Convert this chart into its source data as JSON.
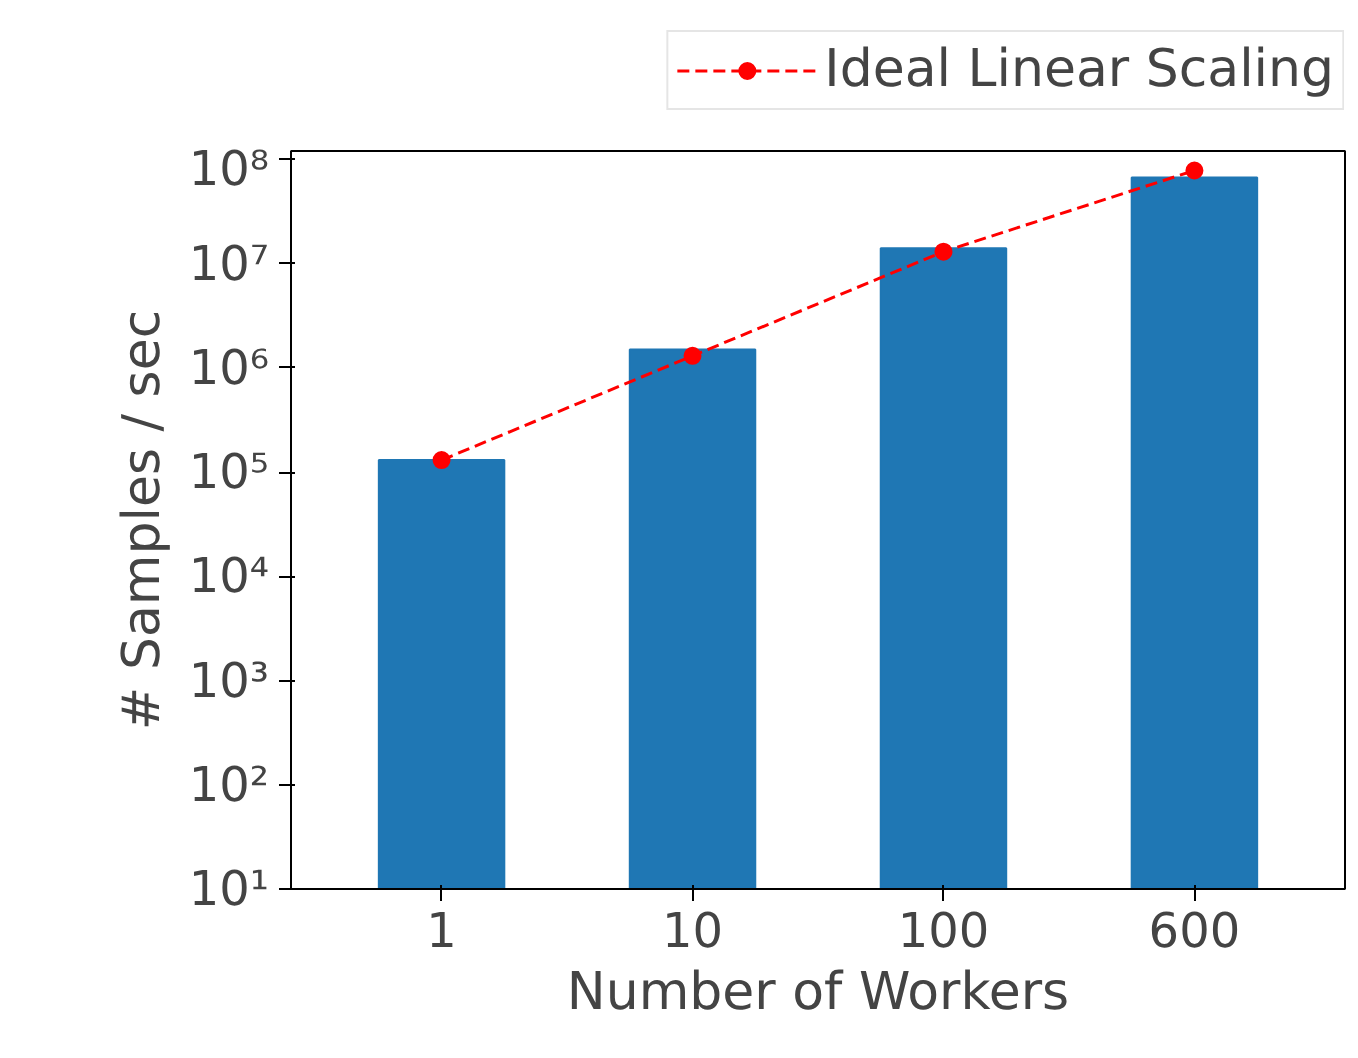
{
  "chart_data": {
    "type": "bar",
    "xlabel": "Number of Workers",
    "ylabel": "# Samples / sec",
    "categories": [
      "1",
      "10",
      "100",
      "600"
    ],
    "log": true,
    "ylim": [
      10,
      120000000
    ],
    "yticks": [
      {
        "value": 10,
        "label": "10¹"
      },
      {
        "value": 100,
        "label": "10²"
      },
      {
        "value": 1000,
        "label": "10³"
      },
      {
        "value": 10000,
        "label": "10⁴"
      },
      {
        "value": 100000,
        "label": "10⁵"
      },
      {
        "value": 1000000,
        "label": "10⁶"
      },
      {
        "value": 10000000,
        "label": "10⁷"
      },
      {
        "value": 100000000,
        "label": "10⁸"
      }
    ],
    "grid": false,
    "legend": "top",
    "series": [
      {
        "color": "#1f77b4",
        "values": [
          130000,
          1500000,
          14000000,
          67000000
        ]
      },
      {
        "type": "line",
        "name": "Ideal Linear Scaling",
        "color": "#ff0000",
        "marker": "circle",
        "line_style": "dashed",
        "values": [
          130000,
          1300000,
          13000000,
          78000000
        ]
      }
    ]
  }
}
